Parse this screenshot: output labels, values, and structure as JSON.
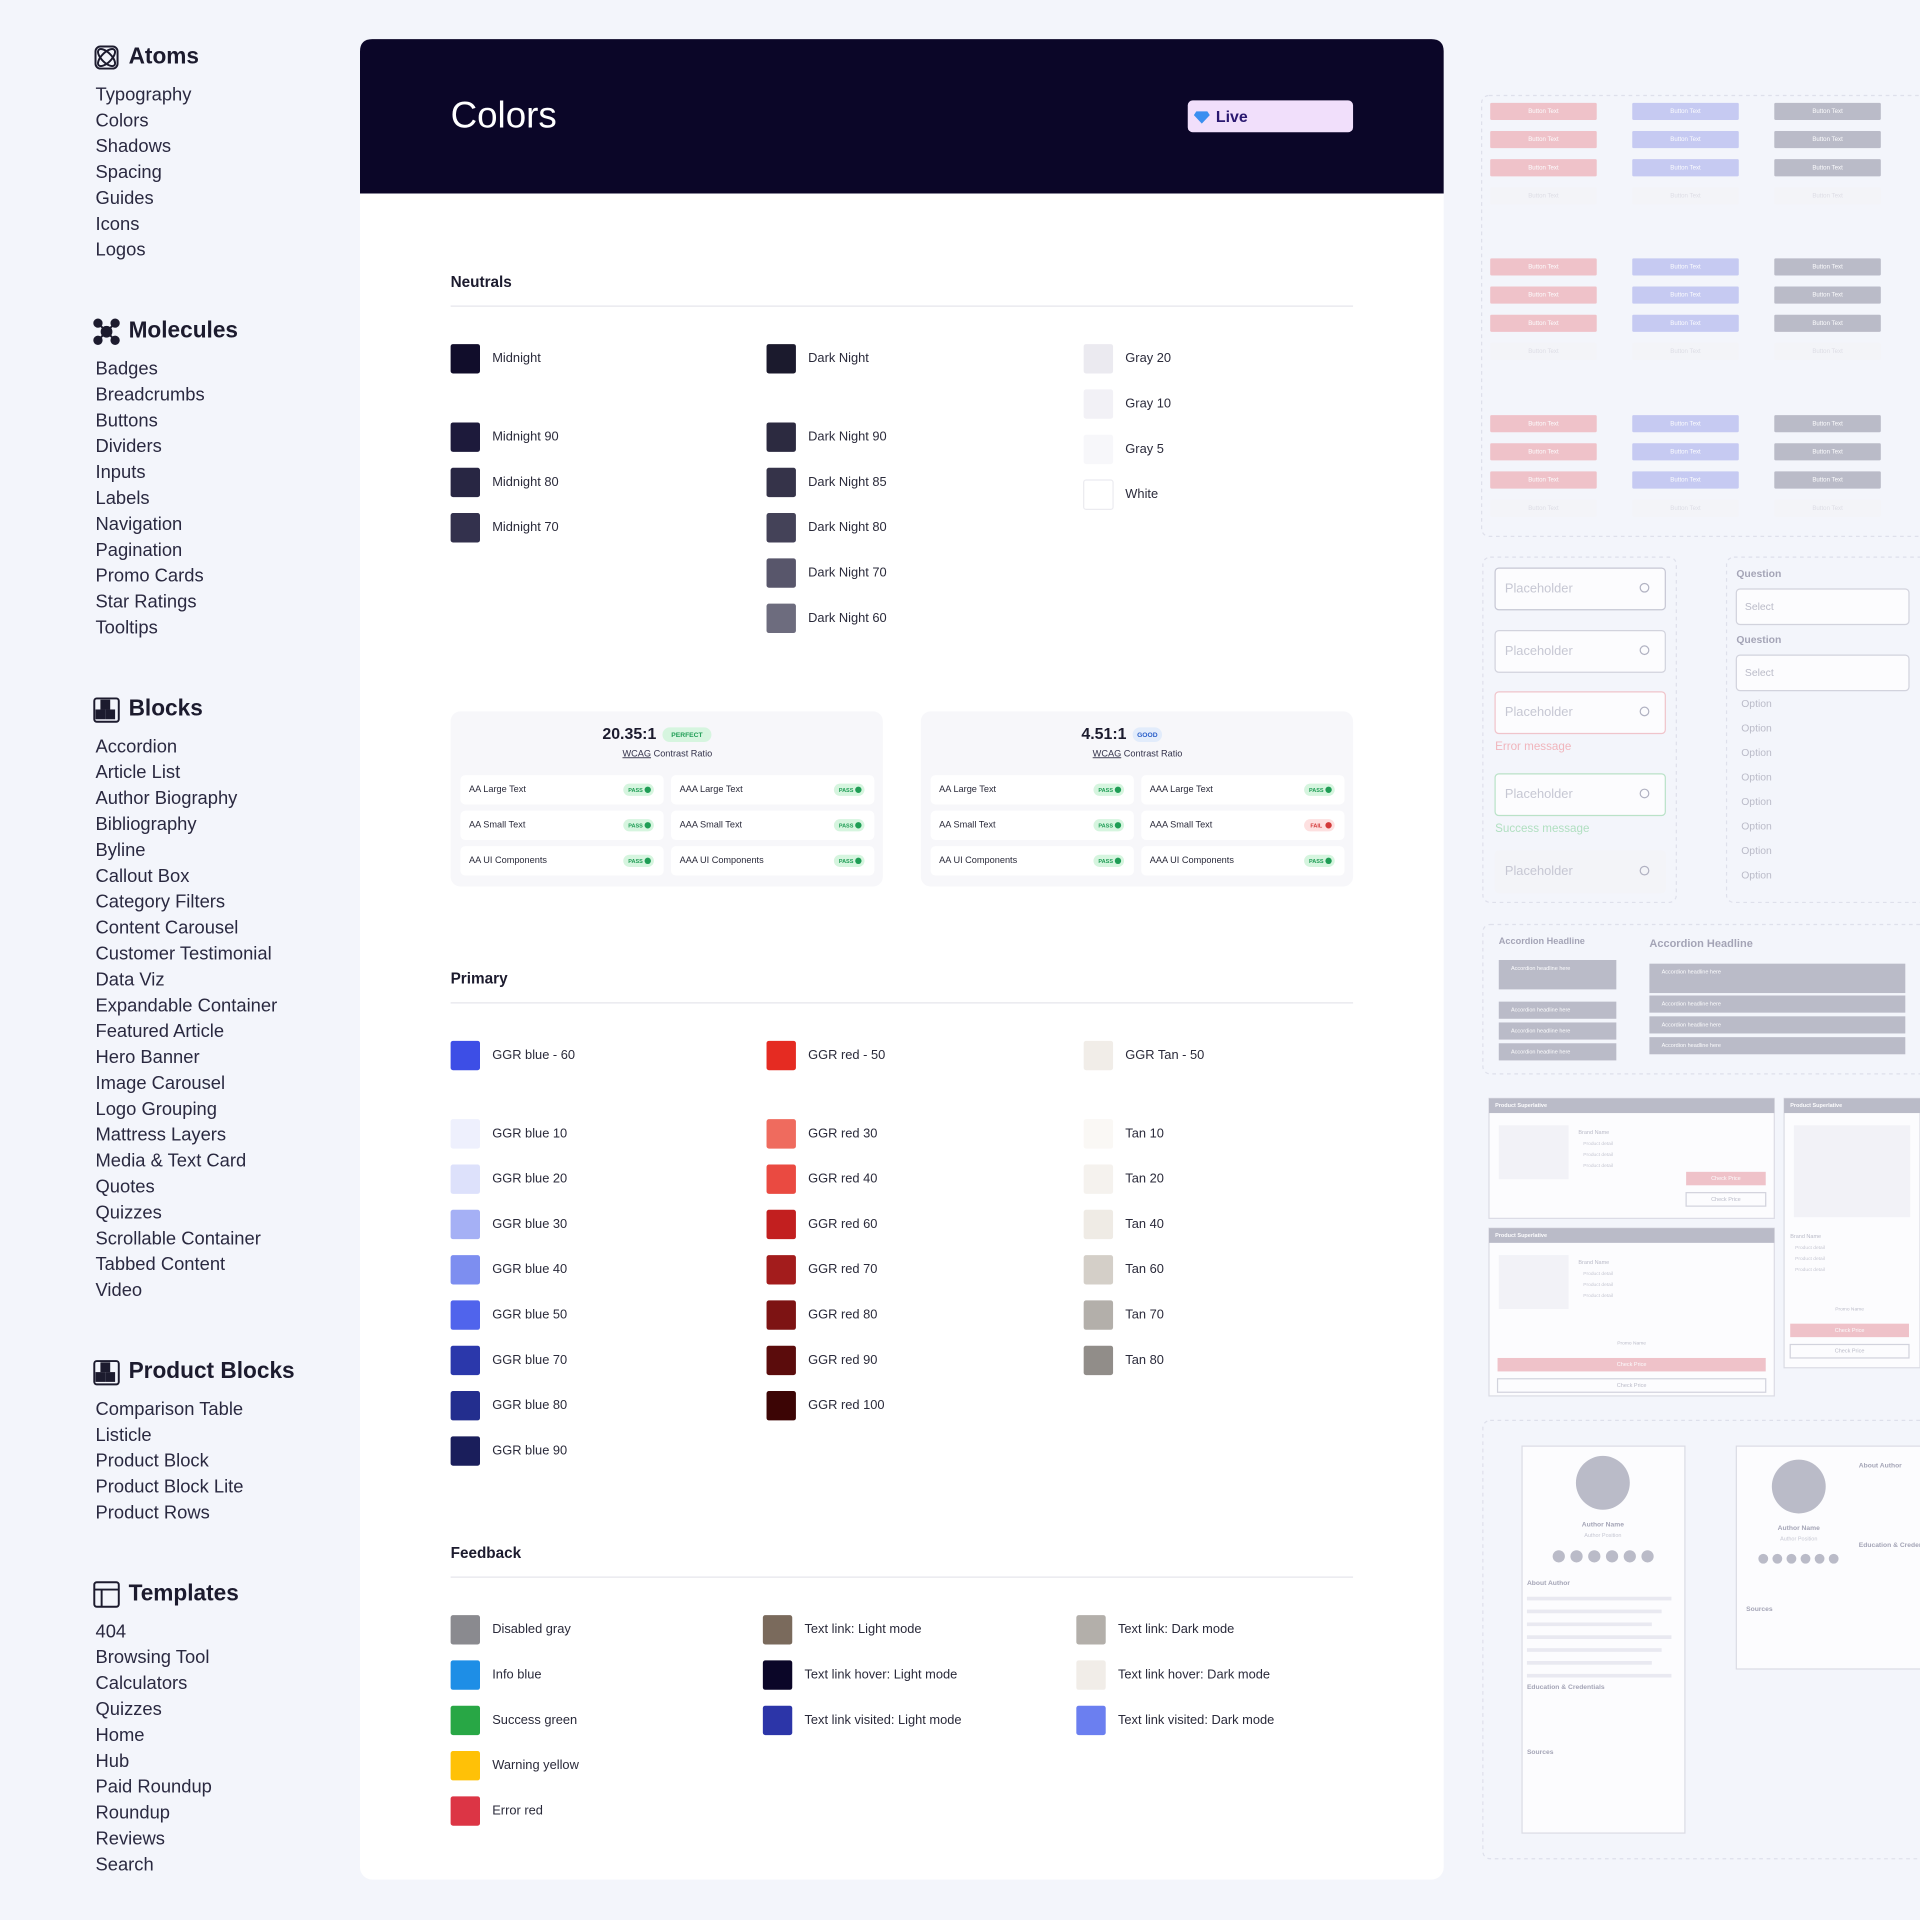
{
  "sidebar": {
    "sections": [
      {
        "title": "Atoms",
        "items": [
          "Typography",
          "Colors",
          "Shadows",
          "Spacing",
          "Guides",
          "Icons",
          "Logos"
        ]
      },
      {
        "title": "Molecules",
        "items": [
          "Badges",
          "Breadcrumbs",
          "Buttons",
          "Dividers",
          "Inputs",
          "Labels",
          "Navigation",
          "Pagination",
          "Promo Cards",
          "Star Ratings",
          "Tooltips"
        ]
      },
      {
        "title": "Blocks",
        "items": [
          "Accordion",
          "Article List",
          "Author Biography",
          "Bibliography",
          "Byline",
          "Callout Box",
          "Category Filters",
          "Content Carousel",
          "Customer Testimonial",
          "Data Viz",
          "Expandable Container",
          "Featured Article",
          "Hero Banner",
          "Image Carousel",
          "Logo Grouping",
          "Mattress Layers",
          "Media & Text Card",
          "Quotes",
          "Quizzes",
          "Scrollable Container",
          "Tabbed Content",
          "Video"
        ]
      },
      {
        "title": "Product Blocks",
        "items": [
          "Comparison Table",
          "Listicle",
          "Product Block",
          "Product Block Lite",
          "Product Rows"
        ]
      },
      {
        "title": "Templates",
        "items": [
          "404",
          "Browsing Tool",
          "Calculators",
          "Quizzes",
          "Home",
          "Hub",
          "Paid Roundup",
          "Roundup",
          "Reviews",
          "Search"
        ]
      }
    ]
  },
  "page": {
    "title": "Colors",
    "status": "Live"
  },
  "palettes": [
    {
      "title": "Neutrals",
      "columns": [
        {
          "main": {
            "name": "Midnight",
            "color": "#110d2b"
          },
          "shades": [
            {
              "name": "Midnight 90",
              "color": "#1d1a3b"
            },
            {
              "name": "Midnight 80",
              "color": "#282643"
            },
            {
              "name": "Midnight 70",
              "color": "#33314d"
            }
          ]
        },
        {
          "main": {
            "name": "Dark Night",
            "color": "#1b1a2d"
          },
          "shades": [
            {
              "name": "Dark Night 90",
              "color": "#2c2a40"
            },
            {
              "name": "Dark Night 85",
              "color": "#353349"
            },
            {
              "name": "Dark Night 80",
              "color": "#444258"
            },
            {
              "name": "Dark Night 70",
              "color": "#58566b"
            },
            {
              "name": "Dark Night 60",
              "color": "#6d6c7e"
            }
          ]
        },
        {
          "shades": [
            {
              "name": "Gray 20",
              "color": "#ebeaf0"
            },
            {
              "name": "Gray 10",
              "color": "#f2f1f6"
            },
            {
              "name": "Gray 5",
              "color": "#f7f7fa"
            },
            {
              "name": "White",
              "color": "#ffffff"
            }
          ]
        }
      ]
    },
    {
      "title": "Primary",
      "columns": [
        {
          "main": {
            "name": "GGR blue - 60",
            "color": "#3d4ee6"
          },
          "shades": [
            {
              "name": "GGR blue 10",
              "color": "#eef0fd"
            },
            {
              "name": "GGR blue 20",
              "color": "#dde1fb"
            },
            {
              "name": "GGR blue 30",
              "color": "#a5b0f5"
            },
            {
              "name": "GGR blue 40",
              "color": "#7d8ef0"
            },
            {
              "name": "GGR blue 50",
              "color": "#5064ec"
            },
            {
              "name": "GGR blue 70",
              "color": "#2b38ab"
            },
            {
              "name": "GGR blue 80",
              "color": "#232e8e"
            },
            {
              "name": "GGR blue 90",
              "color": "#1a1e5b"
            }
          ]
        },
        {
          "main": {
            "name": "GGR red - 50",
            "color": "#e52b22"
          },
          "shades": [
            {
              "name": "GGR red 30",
              "color": "#ef6b5e"
            },
            {
              "name": "GGR red 40",
              "color": "#ea4a41"
            },
            {
              "name": "GGR red 60",
              "color": "#c21f1f"
            },
            {
              "name": "GGR red 70",
              "color": "#a31c1c"
            },
            {
              "name": "GGR red 80",
              "color": "#7d1313"
            },
            {
              "name": "GGR red 90",
              "color": "#5b0c0c"
            },
            {
              "name": "GGR red 100",
              "color": "#3c0505"
            }
          ]
        },
        {
          "main": {
            "name": "GGR Tan - 50",
            "color": "#f1ede8"
          },
          "shades": [
            {
              "name": "Tan 10",
              "color": "#faf8f5"
            },
            {
              "name": "Tan 20",
              "color": "#f5f2ee"
            },
            {
              "name": "Tan 40",
              "color": "#efebe5"
            },
            {
              "name": "Tan 60",
              "color": "#d4cfc8"
            },
            {
              "name": "Tan 70",
              "color": "#b3afaa"
            },
            {
              "name": "Tan 80",
              "color": "#918d89"
            }
          ]
        }
      ]
    },
    {
      "title": "Feedback",
      "columns": [
        {
          "shades": [
            {
              "name": "Disabled gray",
              "color": "#8a8a8f"
            },
            {
              "name": "Info blue",
              "color": "#1e8ee6"
            },
            {
              "name": "Success green",
              "color": "#28a745"
            },
            {
              "name": "Warning yellow",
              "color": "#ffc107"
            },
            {
              "name": "Error red",
              "color": "#dc3545"
            }
          ]
        },
        {
          "shades": [
            {
              "name": "Text link: Light mode",
              "color": "#7a6a5c"
            },
            {
              "name": "Text link hover: Light mode",
              "color": "#0b0628"
            },
            {
              "name": "Text link visited: Light mode",
              "color": "#2c35a8"
            }
          ]
        },
        {
          "shades": [
            {
              "name": "Text link: Dark mode",
              "color": "#b3afaa"
            },
            {
              "name": "Text link hover: Dark mode",
              "color": "#f1ede8"
            },
            {
              "name": "Text link visited: Dark mode",
              "color": "#6b7ff0"
            }
          ]
        }
      ]
    }
  ],
  "contrast_cards": [
    {
      "ratio": "20.35:1",
      "rating": "PERFECT",
      "caption_abbr": "WCAG",
      "caption": "Contrast Ratio",
      "checks": [
        {
          "label": "AA Large Text",
          "result": "PASS"
        },
        {
          "label": "AAA Large Text",
          "result": "PASS"
        },
        {
          "label": "AA Small Text",
          "result": "PASS"
        },
        {
          "label": "AAA Small Text",
          "result": "PASS"
        },
        {
          "label": "AA UI Components",
          "result": "PASS"
        },
        {
          "label": "AAA UI Components",
          "result": "PASS"
        }
      ]
    },
    {
      "ratio": "4.51:1",
      "rating": "GOOD",
      "caption_abbr": "WCAG",
      "caption": "Contrast Ratio",
      "checks": [
        {
          "label": "AA Large Text",
          "result": "PASS"
        },
        {
          "label": "AAA Large Text",
          "result": "PASS"
        },
        {
          "label": "AA Small Text",
          "result": "PASS"
        },
        {
          "label": "AAA Small Text",
          "result": "FAIL"
        },
        {
          "label": "AA UI Components",
          "result": "PASS"
        },
        {
          "label": "AAA UI Components",
          "result": "PASS"
        }
      ]
    }
  ],
  "previews": {
    "button": "Button Text",
    "inputs": {
      "placeholder": "Placeholder",
      "error": "Error message",
      "success": "Success message",
      "question": "Question",
      "select": "Select",
      "option": "Option"
    },
    "accordion": {
      "headline": "Accordion Headline",
      "item": "Accordion headline here"
    },
    "product": {
      "superlative": "Product Superlative",
      "brand": "Brand Name",
      "detail": "Product detail",
      "promo": "Promo Name",
      "cta": "Check Price"
    },
    "author": {
      "name": "Author Name",
      "position": "Author Position",
      "about": "About Author",
      "education": "Education & Credentials",
      "sources": "Sources"
    }
  }
}
